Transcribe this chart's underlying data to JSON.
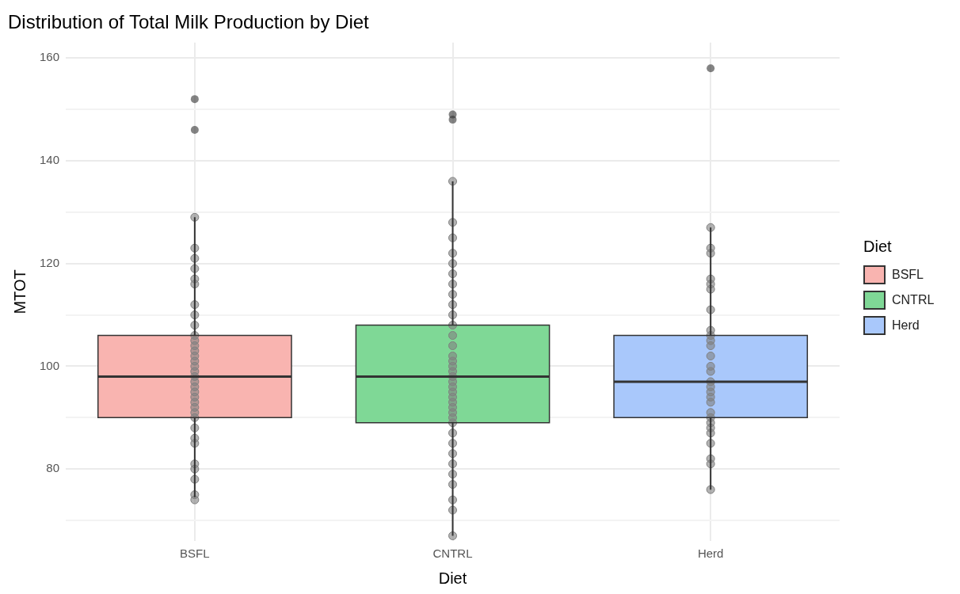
{
  "chart_data": {
    "type": "box",
    "title": "Distribution of Total Milk Production by Diet",
    "xlabel": "Diet",
    "ylabel": "MTOT",
    "legend_title": "Diet",
    "legend": "right",
    "grid": true,
    "categories": [
      "BSFL",
      "CNTRL",
      "Herd"
    ],
    "series": [
      {
        "name": "BSFL",
        "color": "#f9b4b0",
        "boxes": [
          {
            "low": 74.5,
            "q1": 90,
            "median": 98,
            "q3": 106,
            "high": 129,
            "outliers": [
              146,
              152
            ]
          },
          null,
          null
        ]
      },
      {
        "name": "CNTRL",
        "color": "#7fd896",
        "boxes": [
          null,
          {
            "low": 67,
            "q1": 89,
            "median": 98,
            "q3": 108,
            "high": 136,
            "outliers": [
              148,
              149
            ]
          },
          null
        ]
      },
      {
        "name": "Herd",
        "color": "#a9c8fb",
        "boxes": [
          null,
          null,
          {
            "low": 76,
            "q1": 90,
            "median": 97,
            "q3": 106,
            "high": 127,
            "outliers": [
              158
            ]
          }
        ]
      },
      {
        "type": "scatter",
        "color": "#808080",
        "marker": "circle",
        "x": [
          "BSFL",
          "BSFL",
          "BSFL",
          "BSFL",
          "BSFL",
          "BSFL",
          "BSFL",
          "BSFL",
          "BSFL",
          "BSFL",
          "BSFL",
          "BSFL",
          "BSFL",
          "BSFL",
          "BSFL",
          "BSFL",
          "BSFL",
          "BSFL",
          "BSFL",
          "BSFL",
          "BSFL",
          "BSFL",
          "BSFL",
          "BSFL",
          "BSFL",
          "BSFL",
          "BSFL",
          "BSFL",
          "BSFL",
          "BSFL",
          "BSFL",
          "BSFL",
          "BSFL",
          "BSFL",
          "CNTRL",
          "CNTRL",
          "CNTRL",
          "CNTRL",
          "CNTRL",
          "CNTRL",
          "CNTRL",
          "CNTRL",
          "CNTRL",
          "CNTRL",
          "CNTRL",
          "CNTRL",
          "CNTRL",
          "CNTRL",
          "CNTRL",
          "CNTRL",
          "CNTRL",
          "CNTRL",
          "CNTRL",
          "CNTRL",
          "CNTRL",
          "CNTRL",
          "CNTRL",
          "CNTRL",
          "CNTRL",
          "CNTRL",
          "CNTRL",
          "CNTRL",
          "CNTRL",
          "CNTRL",
          "CNTRL",
          "CNTRL",
          "CNTRL",
          "CNTRL",
          "CNTRL",
          "CNTRL",
          "Herd",
          "Herd",
          "Herd",
          "Herd",
          "Herd",
          "Herd",
          "Herd",
          "Herd",
          "Herd",
          "Herd",
          "Herd",
          "Herd",
          "Herd",
          "Herd",
          "Herd",
          "Herd",
          "Herd",
          "Herd",
          "Herd",
          "Herd",
          "Herd",
          "Herd",
          "Herd",
          "Herd",
          "Herd",
          "Herd",
          "Herd",
          "Herd"
        ],
        "values": [
          74,
          75,
          78,
          80,
          81,
          85,
          86,
          88,
          90,
          91,
          92,
          93,
          94,
          95,
          96,
          97,
          98,
          99,
          100,
          101,
          102,
          103,
          104,
          105,
          106,
          108,
          110,
          112,
          116,
          117,
          119,
          121,
          123,
          129,
          67,
          72,
          74,
          77,
          79,
          81,
          83,
          85,
          87,
          89,
          90,
          91,
          92,
          93,
          94,
          95,
          96,
          97,
          98,
          99,
          100,
          101,
          102,
          104,
          106,
          108,
          110,
          112,
          114,
          116,
          118,
          120,
          122,
          125,
          128,
          136,
          76,
          81,
          82,
          85,
          87,
          88,
          89,
          90,
          91,
          93,
          94,
          95,
          96,
          97,
          99,
          100,
          102,
          104,
          105,
          106,
          107,
          111,
          115,
          116,
          117,
          122,
          123,
          127
        ]
      }
    ],
    "ylim": [
      66,
      163
    ],
    "yticks": [
      {
        "value": 70,
        "label": null
      },
      80,
      {
        "value": 90,
        "label": null
      },
      100,
      {
        "value": 110,
        "label": null
      },
      120,
      {
        "value": 130,
        "label": null
      },
      140,
      {
        "value": 150,
        "label": null
      },
      160
    ]
  }
}
